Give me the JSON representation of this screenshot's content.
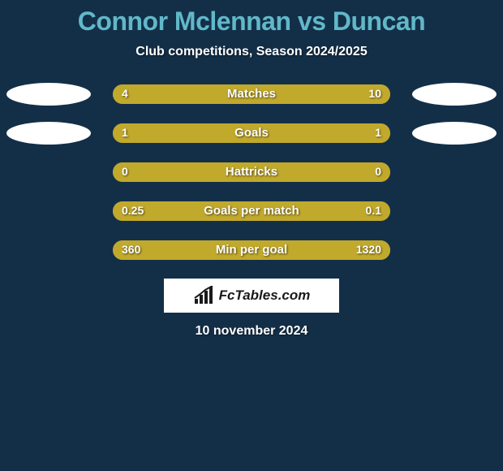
{
  "colors": {
    "page_bg": "#132f48",
    "title_color": "#61b8c9",
    "subtitle_color": "#ffffff",
    "ellipse_color": "#ffffff",
    "bar_track_bg": "#aa9527",
    "bar_fill_left": "#c1a92c",
    "bar_fill_right": "#c1a92c",
    "bar_label_color": "#ffffff",
    "value_color": "#ffffff",
    "brand_bg": "#ffffff",
    "brand_text": "#1a1a1a",
    "brand_icon": "#1a1a1a",
    "date_color": "#ffffff"
  },
  "title": "Connor Mclennan vs Duncan",
  "subtitle": "Club competitions, Season 2024/2025",
  "brand": "FcTables.com",
  "date_text": "10 november 2024",
  "rows": [
    {
      "label": "Matches",
      "left_value": "4",
      "right_value": "10",
      "show_left_ellipse": true,
      "show_right_ellipse": true,
      "left_pct": 28,
      "right_pct": 72
    },
    {
      "label": "Goals",
      "left_value": "1",
      "right_value": "1",
      "show_left_ellipse": true,
      "show_right_ellipse": true,
      "left_pct": 50,
      "right_pct": 50
    },
    {
      "label": "Hattricks",
      "left_value": "0",
      "right_value": "0",
      "show_left_ellipse": false,
      "show_right_ellipse": false,
      "left_pct": 50,
      "right_pct": 50
    },
    {
      "label": "Goals per match",
      "left_value": "0.25",
      "right_value": "0.1",
      "show_left_ellipse": false,
      "show_right_ellipse": false,
      "left_pct": 71,
      "right_pct": 29
    },
    {
      "label": "Min per goal",
      "left_value": "360",
      "right_value": "1320",
      "show_left_ellipse": false,
      "show_right_ellipse": false,
      "left_pct": 21,
      "right_pct": 79
    }
  ]
}
